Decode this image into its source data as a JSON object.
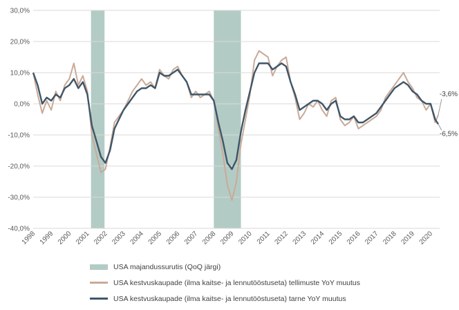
{
  "chart_data": {
    "type": "line",
    "title": "",
    "xlabel": "",
    "ylabel": "",
    "ylim": [
      -40,
      30
    ],
    "y_ticks": [
      "30,0%",
      "20,0%",
      "10,0%",
      "0,0%",
      "-10,0%",
      "-20,0%",
      "-30,0%",
      "-40,0%"
    ],
    "x_ticks": [
      "1998",
      "1999",
      "2000",
      "2001",
      "2002",
      "2003",
      "2004",
      "2005",
      "2006",
      "2007",
      "2008",
      "2009",
      "2010",
      "2011",
      "2012",
      "2013",
      "2014",
      "2015",
      "2016",
      "2017",
      "2018",
      "2019",
      "2020"
    ],
    "grid": "horizontal",
    "legend_position": "bottom",
    "recessions": {
      "name": "USA majandussurutis (QoQ järgi)",
      "color": "#b3cbc5",
      "periods": [
        [
          2001.2,
          2001.95
        ],
        [
          2008.0,
          2009.5
        ]
      ]
    },
    "series": [
      {
        "name": "USA kestvuskaupade (ilma kaitse- ja lennutööstuseta) tellimuste YoY muutus",
        "color": "#c9aa97",
        "x": [
          1998.0,
          1998.25,
          1998.5,
          1998.75,
          1999.0,
          1999.25,
          1999.5,
          1999.75,
          2000.0,
          2000.25,
          2000.5,
          2000.75,
          2001.0,
          2001.25,
          2001.5,
          2001.75,
          2002.0,
          2002.25,
          2002.5,
          2002.75,
          2003.0,
          2003.25,
          2003.5,
          2003.75,
          2004.0,
          2004.25,
          2004.5,
          2004.75,
          2005.0,
          2005.25,
          2005.5,
          2005.75,
          2006.0,
          2006.25,
          2006.5,
          2006.75,
          2007.0,
          2007.25,
          2007.5,
          2007.75,
          2008.0,
          2008.25,
          2008.5,
          2008.75,
          2009.0,
          2009.25,
          2009.5,
          2009.75,
          2010.0,
          2010.25,
          2010.5,
          2010.75,
          2011.0,
          2011.25,
          2011.5,
          2011.75,
          2012.0,
          2012.25,
          2012.5,
          2012.75,
          2013.0,
          2013.25,
          2013.5,
          2013.75,
          2014.0,
          2014.25,
          2014.5,
          2014.75,
          2015.0,
          2015.25,
          2015.5,
          2015.75,
          2016.0,
          2016.25,
          2016.5,
          2016.75,
          2017.0,
          2017.25,
          2017.5,
          2017.75,
          2018.0,
          2018.25,
          2018.5,
          2018.75,
          2019.0,
          2019.25,
          2019.5,
          2019.75,
          2020.0,
          2020.25,
          2020.42
        ],
        "y": [
          10,
          3,
          -3,
          1,
          -2,
          4,
          1,
          6,
          8,
          13,
          6,
          9,
          4,
          -10,
          -16,
          -22,
          -21,
          -14,
          -6,
          -4,
          -2,
          1,
          4,
          6,
          8,
          6,
          7,
          5,
          11,
          9,
          8,
          11,
          12,
          9,
          7,
          2,
          4,
          2,
          3,
          4,
          1,
          -8,
          -16,
          -26,
          -31,
          -25,
          -13,
          -5,
          3,
          14,
          17,
          16,
          15,
          9,
          12,
          14,
          15,
          7,
          2,
          -5,
          -3,
          0,
          -1,
          1,
          -2,
          -4,
          1,
          2,
          -5,
          -7,
          -6,
          -4,
          -8,
          -7,
          -6,
          -5,
          -4,
          -2,
          2,
          4,
          6,
          8,
          10,
          7,
          5,
          2,
          1,
          -2,
          0,
          -6,
          -3.6
        ]
      },
      {
        "name": "USA kestvuskaupade (ilma kaitse- ja lennutööstuseta) tarne YoY muutus",
        "color": "#3f5669",
        "x": [
          1998.0,
          1998.25,
          1998.5,
          1998.75,
          1999.0,
          1999.25,
          1999.5,
          1999.75,
          2000.0,
          2000.25,
          2000.5,
          2000.75,
          2001.0,
          2001.25,
          2001.5,
          2001.75,
          2002.0,
          2002.25,
          2002.5,
          2002.75,
          2003.0,
          2003.25,
          2003.5,
          2003.75,
          2004.0,
          2004.25,
          2004.5,
          2004.75,
          2005.0,
          2005.25,
          2005.5,
          2005.75,
          2006.0,
          2006.25,
          2006.5,
          2006.75,
          2007.0,
          2007.25,
          2007.5,
          2007.75,
          2008.0,
          2008.25,
          2008.5,
          2008.75,
          2009.0,
          2009.25,
          2009.5,
          2009.75,
          2010.0,
          2010.25,
          2010.5,
          2010.75,
          2011.0,
          2011.25,
          2011.5,
          2011.75,
          2012.0,
          2012.25,
          2012.5,
          2012.75,
          2013.0,
          2013.25,
          2013.5,
          2013.75,
          2014.0,
          2014.25,
          2014.5,
          2014.75,
          2015.0,
          2015.25,
          2015.5,
          2015.75,
          2016.0,
          2016.25,
          2016.5,
          2016.75,
          2017.0,
          2017.25,
          2017.5,
          2017.75,
          2018.0,
          2018.25,
          2018.5,
          2018.75,
          2019.0,
          2019.25,
          2019.5,
          2019.75,
          2020.0,
          2020.25,
          2020.42
        ],
        "y": [
          10,
          6,
          0,
          2,
          1,
          3,
          2,
          5,
          6,
          8,
          5,
          7,
          3,
          -7,
          -12,
          -17,
          -19,
          -15,
          -8,
          -5,
          -2,
          0,
          2,
          4,
          5,
          5,
          6,
          5,
          10,
          9,
          9,
          10,
          11,
          9,
          7,
          3,
          3,
          3,
          3,
          3,
          1,
          -6,
          -12,
          -19,
          -21,
          -18,
          -9,
          -2,
          4,
          10,
          13,
          13,
          13,
          11,
          12,
          13,
          12,
          7,
          3,
          -2,
          -1,
          0,
          1,
          1,
          0,
          -2,
          0,
          1,
          -4,
          -5,
          -5,
          -4,
          -6,
          -6,
          -5,
          -4,
          -3,
          -1,
          1,
          3,
          5,
          6,
          7,
          6,
          4,
          3,
          1,
          0,
          0,
          -5,
          -6.5
        ]
      }
    ],
    "annotations": [
      {
        "text": "-3,6%",
        "series": 0
      },
      {
        "text": "-6,5%",
        "series": 1
      }
    ]
  }
}
